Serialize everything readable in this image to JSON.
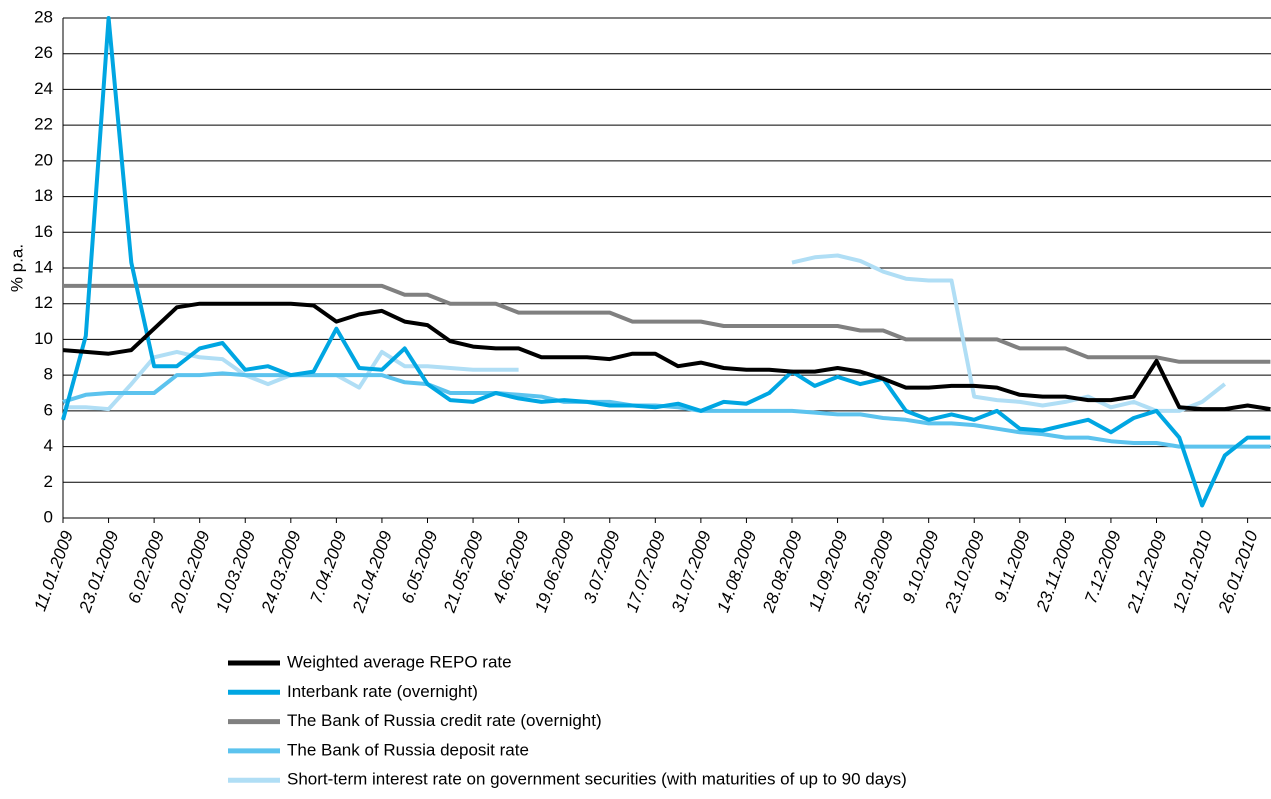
{
  "chart_data": {
    "type": "line",
    "y_label": "% p.a.",
    "categories": [
      "11.01.2009",
      null,
      "23.01.2009",
      null,
      "6.02.2009",
      null,
      "20.02.2009",
      null,
      "10.03.2009",
      null,
      "24.03.2009",
      null,
      "7.04.2009",
      null,
      "21.04.2009",
      null,
      "6.05.2009",
      null,
      "21.05.2009",
      null,
      "4.06.2009",
      null,
      "19.06.2009",
      null,
      "3.07.2009",
      null,
      "17.07.2009",
      null,
      "31.07.2009",
      null,
      "14.08.2009",
      null,
      "28.08.2009",
      null,
      "11.09.2009",
      null,
      "25.09.2009",
      null,
      "9.10.2009",
      null,
      "23.10.2009",
      null,
      "9.11.2009",
      null,
      "23.11.2009",
      null,
      "7.12.2009",
      null,
      "21.12.2009",
      null,
      "12.01.2010",
      null,
      "26.01.2010",
      null
    ],
    "ylim": [
      0,
      28
    ],
    "yticks": [
      0,
      2,
      4,
      6,
      8,
      10,
      12,
      14,
      16,
      18,
      20,
      22,
      24,
      26,
      28
    ],
    "grid": true,
    "legend": "bottom",
    "series": [
      {
        "name": "The Bank of Russia credit rate (overnight)",
        "color": "#808080",
        "values": [
          13,
          13,
          13,
          13,
          13,
          13,
          13,
          13,
          13,
          13,
          13,
          13,
          13,
          13,
          13,
          12.5,
          12.5,
          12,
          12,
          12,
          11.5,
          11.5,
          11.5,
          11.5,
          11.5,
          11,
          11,
          11,
          11,
          10.75,
          10.75,
          10.75,
          10.75,
          10.75,
          10.75,
          10.5,
          10.5,
          10,
          10,
          10,
          10,
          10,
          9.5,
          9.5,
          9.5,
          9,
          9,
          9,
          9,
          8.75,
          8.75,
          8.75,
          8.75,
          8.75
        ]
      },
      {
        "name": "Short-term interest rate on government securities (with maturities of up to 90 days)",
        "color": "#b0def5",
        "values": [
          6.2,
          6.2,
          6.1,
          7.5,
          9.0,
          9.3,
          9.0,
          8.9,
          8.0,
          7.5,
          8.0,
          8.0,
          8.0,
          7.3,
          9.3,
          8.5,
          8.5,
          8.4,
          8.3,
          8.3,
          8.3,
          null,
          null,
          null,
          null,
          null,
          null,
          null,
          null,
          null,
          null,
          null,
          14.3,
          14.6,
          14.7,
          14.4,
          13.8,
          13.4,
          13.3,
          13.3,
          6.8,
          6.6,
          6.5,
          6.3,
          6.5,
          6.8,
          6.2,
          6.5,
          6.0,
          6.0,
          6.5,
          7.5,
          null,
          null
        ]
      },
      {
        "name": "The Bank of Russia deposit rate",
        "color": "#5cc3ee",
        "values": [
          6.5,
          6.9,
          7.0,
          7.0,
          7.0,
          8.0,
          8.0,
          8.1,
          8.0,
          8.0,
          8.0,
          8.0,
          8.0,
          8.0,
          8.0,
          7.6,
          7.5,
          7.0,
          7.0,
          7.0,
          6.9,
          6.8,
          6.5,
          6.5,
          6.5,
          6.3,
          6.3,
          6.2,
          6.0,
          6.0,
          6.0,
          6.0,
          6.0,
          5.9,
          5.8,
          5.8,
          5.6,
          5.5,
          5.3,
          5.3,
          5.2,
          5.0,
          4.8,
          4.7,
          4.5,
          4.5,
          4.3,
          4.2,
          4.2,
          4.0,
          4.0,
          4.0,
          4.0,
          4.0
        ]
      },
      {
        "name": "Interbank rate (overnight)",
        "color": "#00a6e2",
        "values": [
          5.5,
          10.2,
          28.0,
          14.3,
          8.5,
          8.5,
          9.5,
          9.8,
          8.3,
          8.5,
          8.0,
          8.2,
          10.6,
          8.4,
          8.3,
          9.5,
          7.5,
          6.6,
          6.5,
          7.0,
          6.7,
          6.5,
          6.6,
          6.5,
          6.3,
          6.3,
          6.2,
          6.4,
          6.0,
          6.5,
          6.4,
          7.0,
          8.2,
          7.4,
          7.9,
          7.5,
          7.8,
          6.0,
          5.5,
          5.8,
          5.5,
          6.0,
          5.0,
          4.9,
          5.2,
          5.5,
          4.8,
          5.6,
          6.0,
          4.5,
          0.7,
          3.5,
          4.5,
          4.5
        ]
      },
      {
        "name": "Weighted average REPO rate",
        "color": "#000000",
        "values": [
          9.4,
          9.3,
          9.2,
          9.4,
          10.6,
          11.8,
          12.0,
          12.0,
          12.0,
          12.0,
          12.0,
          11.9,
          11.0,
          11.4,
          11.6,
          11.0,
          10.8,
          9.9,
          9.6,
          9.5,
          9.5,
          9.0,
          9.0,
          9.0,
          8.9,
          9.2,
          9.2,
          8.5,
          8.7,
          8.4,
          8.3,
          8.3,
          8.2,
          8.2,
          8.4,
          8.2,
          7.8,
          7.3,
          7.3,
          7.4,
          7.4,
          7.3,
          6.9,
          6.8,
          6.8,
          6.6,
          6.6,
          6.8,
          8.8,
          6.2,
          6.1,
          6.1,
          6.3,
          6.1
        ]
      }
    ]
  }
}
